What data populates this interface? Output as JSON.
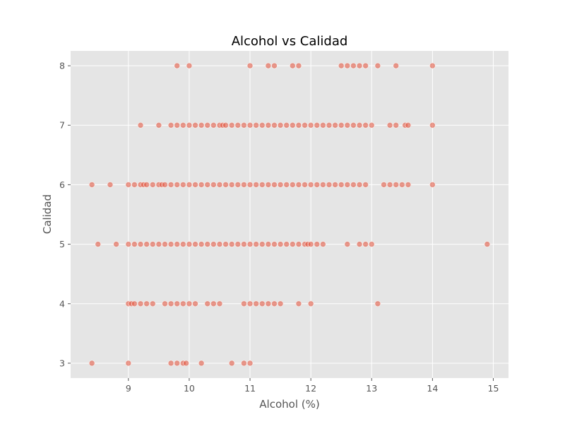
{
  "chart_data": {
    "type": "scatter",
    "title": "Alcohol vs Calidad",
    "xlabel": "Alcohol (%)",
    "ylabel": "Calidad",
    "xlim": [
      8.05,
      15.25
    ],
    "ylim": [
      2.75,
      8.25
    ],
    "xticks": [
      9,
      10,
      11,
      12,
      13,
      14,
      15
    ],
    "yticks": [
      3,
      4,
      5,
      6,
      7,
      8
    ],
    "grid": true,
    "colors": {
      "point": "#E24A33",
      "background": "#E5E5E5",
      "grid": "#FFFFFF"
    },
    "point_opacity": 0.55,
    "points": [
      {
        "x": 8.4,
        "y": 3
      },
      {
        "x": 9.0,
        "y": 3
      },
      {
        "x": 9.7,
        "y": 3
      },
      {
        "x": 9.8,
        "y": 3
      },
      {
        "x": 9.9,
        "y": 3
      },
      {
        "x": 9.95,
        "y": 3
      },
      {
        "x": 10.2,
        "y": 3
      },
      {
        "x": 10.7,
        "y": 3
      },
      {
        "x": 10.9,
        "y": 3
      },
      {
        "x": 11.0,
        "y": 3
      },
      {
        "x": 9.0,
        "y": 4
      },
      {
        "x": 9.05,
        "y": 4
      },
      {
        "x": 9.1,
        "y": 4
      },
      {
        "x": 9.2,
        "y": 4
      },
      {
        "x": 9.3,
        "y": 4
      },
      {
        "x": 9.4,
        "y": 4
      },
      {
        "x": 9.6,
        "y": 4
      },
      {
        "x": 9.7,
        "y": 4
      },
      {
        "x": 9.8,
        "y": 4
      },
      {
        "x": 9.9,
        "y": 4
      },
      {
        "x": 10.0,
        "y": 4
      },
      {
        "x": 10.1,
        "y": 4
      },
      {
        "x": 10.3,
        "y": 4
      },
      {
        "x": 10.4,
        "y": 4
      },
      {
        "x": 10.5,
        "y": 4
      },
      {
        "x": 10.9,
        "y": 4
      },
      {
        "x": 11.0,
        "y": 4
      },
      {
        "x": 11.1,
        "y": 4
      },
      {
        "x": 11.2,
        "y": 4
      },
      {
        "x": 11.3,
        "y": 4
      },
      {
        "x": 11.4,
        "y": 4
      },
      {
        "x": 11.5,
        "y": 4
      },
      {
        "x": 11.8,
        "y": 4
      },
      {
        "x": 12.0,
        "y": 4
      },
      {
        "x": 13.1,
        "y": 4
      },
      {
        "x": 8.5,
        "y": 5
      },
      {
        "x": 8.8,
        "y": 5
      },
      {
        "x": 9.0,
        "y": 5
      },
      {
        "x": 9.1,
        "y": 5
      },
      {
        "x": 9.2,
        "y": 5
      },
      {
        "x": 9.3,
        "y": 5
      },
      {
        "x": 9.4,
        "y": 5
      },
      {
        "x": 9.5,
        "y": 5
      },
      {
        "x": 9.6,
        "y": 5
      },
      {
        "x": 9.7,
        "y": 5
      },
      {
        "x": 9.8,
        "y": 5
      },
      {
        "x": 9.9,
        "y": 5
      },
      {
        "x": 10.0,
        "y": 5
      },
      {
        "x": 10.1,
        "y": 5
      },
      {
        "x": 10.2,
        "y": 5
      },
      {
        "x": 10.3,
        "y": 5
      },
      {
        "x": 10.4,
        "y": 5
      },
      {
        "x": 10.5,
        "y": 5
      },
      {
        "x": 10.6,
        "y": 5
      },
      {
        "x": 10.7,
        "y": 5
      },
      {
        "x": 10.8,
        "y": 5
      },
      {
        "x": 10.9,
        "y": 5
      },
      {
        "x": 11.0,
        "y": 5
      },
      {
        "x": 11.1,
        "y": 5
      },
      {
        "x": 11.2,
        "y": 5
      },
      {
        "x": 11.3,
        "y": 5
      },
      {
        "x": 11.4,
        "y": 5
      },
      {
        "x": 11.5,
        "y": 5
      },
      {
        "x": 11.6,
        "y": 5
      },
      {
        "x": 11.7,
        "y": 5
      },
      {
        "x": 11.8,
        "y": 5
      },
      {
        "x": 11.9,
        "y": 5
      },
      {
        "x": 11.95,
        "y": 5
      },
      {
        "x": 12.0,
        "y": 5
      },
      {
        "x": 12.1,
        "y": 5
      },
      {
        "x": 12.2,
        "y": 5
      },
      {
        "x": 12.6,
        "y": 5
      },
      {
        "x": 12.8,
        "y": 5
      },
      {
        "x": 12.9,
        "y": 5
      },
      {
        "x": 13.0,
        "y": 5
      },
      {
        "x": 14.9,
        "y": 5
      },
      {
        "x": 8.4,
        "y": 6
      },
      {
        "x": 8.7,
        "y": 6
      },
      {
        "x": 9.0,
        "y": 6
      },
      {
        "x": 9.1,
        "y": 6
      },
      {
        "x": 9.2,
        "y": 6
      },
      {
        "x": 9.25,
        "y": 6
      },
      {
        "x": 9.3,
        "y": 6
      },
      {
        "x": 9.4,
        "y": 6
      },
      {
        "x": 9.5,
        "y": 6
      },
      {
        "x": 9.55,
        "y": 6
      },
      {
        "x": 9.6,
        "y": 6
      },
      {
        "x": 9.7,
        "y": 6
      },
      {
        "x": 9.8,
        "y": 6
      },
      {
        "x": 9.9,
        "y": 6
      },
      {
        "x": 10.0,
        "y": 6
      },
      {
        "x": 10.1,
        "y": 6
      },
      {
        "x": 10.2,
        "y": 6
      },
      {
        "x": 10.3,
        "y": 6
      },
      {
        "x": 10.4,
        "y": 6
      },
      {
        "x": 10.5,
        "y": 6
      },
      {
        "x": 10.6,
        "y": 6
      },
      {
        "x": 10.7,
        "y": 6
      },
      {
        "x": 10.8,
        "y": 6
      },
      {
        "x": 10.9,
        "y": 6
      },
      {
        "x": 11.0,
        "y": 6
      },
      {
        "x": 11.1,
        "y": 6
      },
      {
        "x": 11.2,
        "y": 6
      },
      {
        "x": 11.3,
        "y": 6
      },
      {
        "x": 11.4,
        "y": 6
      },
      {
        "x": 11.5,
        "y": 6
      },
      {
        "x": 11.6,
        "y": 6
      },
      {
        "x": 11.7,
        "y": 6
      },
      {
        "x": 11.8,
        "y": 6
      },
      {
        "x": 11.9,
        "y": 6
      },
      {
        "x": 12.0,
        "y": 6
      },
      {
        "x": 12.1,
        "y": 6
      },
      {
        "x": 12.2,
        "y": 6
      },
      {
        "x": 12.3,
        "y": 6
      },
      {
        "x": 12.4,
        "y": 6
      },
      {
        "x": 12.5,
        "y": 6
      },
      {
        "x": 12.6,
        "y": 6
      },
      {
        "x": 12.7,
        "y": 6
      },
      {
        "x": 12.8,
        "y": 6
      },
      {
        "x": 12.9,
        "y": 6
      },
      {
        "x": 13.2,
        "y": 6
      },
      {
        "x": 13.3,
        "y": 6
      },
      {
        "x": 13.4,
        "y": 6
      },
      {
        "x": 13.5,
        "y": 6
      },
      {
        "x": 13.6,
        "y": 6
      },
      {
        "x": 14.0,
        "y": 6
      },
      {
        "x": 9.2,
        "y": 7
      },
      {
        "x": 9.5,
        "y": 7
      },
      {
        "x": 9.7,
        "y": 7
      },
      {
        "x": 9.8,
        "y": 7
      },
      {
        "x": 9.9,
        "y": 7
      },
      {
        "x": 10.0,
        "y": 7
      },
      {
        "x": 10.1,
        "y": 7
      },
      {
        "x": 10.2,
        "y": 7
      },
      {
        "x": 10.3,
        "y": 7
      },
      {
        "x": 10.4,
        "y": 7
      },
      {
        "x": 10.5,
        "y": 7
      },
      {
        "x": 10.55,
        "y": 7
      },
      {
        "x": 10.6,
        "y": 7
      },
      {
        "x": 10.7,
        "y": 7
      },
      {
        "x": 10.8,
        "y": 7
      },
      {
        "x": 10.9,
        "y": 7
      },
      {
        "x": 11.0,
        "y": 7
      },
      {
        "x": 11.1,
        "y": 7
      },
      {
        "x": 11.2,
        "y": 7
      },
      {
        "x": 11.3,
        "y": 7
      },
      {
        "x": 11.4,
        "y": 7
      },
      {
        "x": 11.5,
        "y": 7
      },
      {
        "x": 11.6,
        "y": 7
      },
      {
        "x": 11.7,
        "y": 7
      },
      {
        "x": 11.8,
        "y": 7
      },
      {
        "x": 11.9,
        "y": 7
      },
      {
        "x": 12.0,
        "y": 7
      },
      {
        "x": 12.1,
        "y": 7
      },
      {
        "x": 12.2,
        "y": 7
      },
      {
        "x": 12.3,
        "y": 7
      },
      {
        "x": 12.4,
        "y": 7
      },
      {
        "x": 12.5,
        "y": 7
      },
      {
        "x": 12.6,
        "y": 7
      },
      {
        "x": 12.7,
        "y": 7
      },
      {
        "x": 12.8,
        "y": 7
      },
      {
        "x": 12.9,
        "y": 7
      },
      {
        "x": 13.0,
        "y": 7
      },
      {
        "x": 13.3,
        "y": 7
      },
      {
        "x": 13.4,
        "y": 7
      },
      {
        "x": 13.55,
        "y": 7
      },
      {
        "x": 13.6,
        "y": 7
      },
      {
        "x": 14.0,
        "y": 7
      },
      {
        "x": 9.8,
        "y": 8
      },
      {
        "x": 10.0,
        "y": 8
      },
      {
        "x": 11.0,
        "y": 8
      },
      {
        "x": 11.3,
        "y": 8
      },
      {
        "x": 11.4,
        "y": 8
      },
      {
        "x": 11.7,
        "y": 8
      },
      {
        "x": 11.8,
        "y": 8
      },
      {
        "x": 12.5,
        "y": 8
      },
      {
        "x": 12.6,
        "y": 8
      },
      {
        "x": 12.7,
        "y": 8
      },
      {
        "x": 12.8,
        "y": 8
      },
      {
        "x": 12.9,
        "y": 8
      },
      {
        "x": 13.1,
        "y": 8
      },
      {
        "x": 13.4,
        "y": 8
      },
      {
        "x": 14.0,
        "y": 8
      }
    ]
  }
}
